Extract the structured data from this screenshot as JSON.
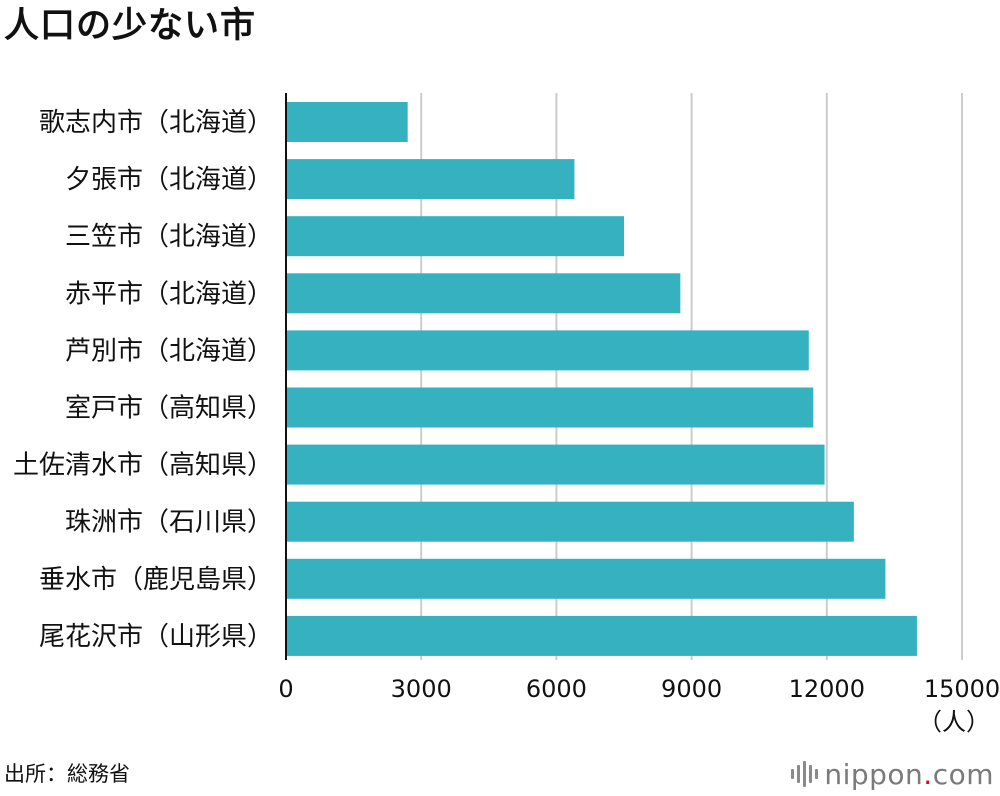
{
  "title": "人口の少ない市",
  "source": "出所：総務省",
  "logo": {
    "name": "nippon",
    "dot": ".",
    "tld": "com"
  },
  "colors": {
    "bar": "#35b1c0",
    "grid": "#cccccc",
    "axis": "#111111",
    "logo_dot": "#e4002b"
  },
  "chart_data": {
    "type": "bar",
    "orientation": "horizontal",
    "categories": [
      "歌志内市（北海道）",
      "夕張市（北海道）",
      "三笠市（北海道）",
      "赤平市（北海道）",
      "芦別市（北海道）",
      "室戸市（高知県）",
      "土佐清水市（高知県）",
      "珠洲市（石川県）",
      "垂水市（鹿児島県）",
      "尾花沢市（山形県）"
    ],
    "values": [
      2700,
      6400,
      7500,
      8750,
      11600,
      11700,
      11950,
      12600,
      13300,
      14000
    ],
    "xlim": [
      0,
      15000
    ],
    "xticks": [
      "0",
      "3000",
      "6000",
      "9000",
      "12000",
      "15000"
    ],
    "xtick_values": [
      0,
      3000,
      6000,
      9000,
      12000,
      15000
    ],
    "unit": "（人）",
    "grid": true
  }
}
